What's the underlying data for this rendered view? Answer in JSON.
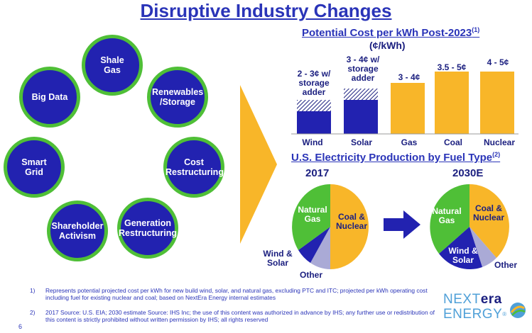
{
  "page": {
    "title": "Disruptive Industry Changes",
    "page_number": "6"
  },
  "circles": [
    {
      "label": "Shale Gas"
    },
    {
      "label": "Renewables /Storage"
    },
    {
      "label": "Cost Restructuring"
    },
    {
      "label": "Generation Restructuring"
    },
    {
      "label": "Shareholder Activism"
    },
    {
      "label": "Smart Grid"
    },
    {
      "label": "Big Data"
    }
  ],
  "cost_chart": {
    "title": "Potential Cost per kWh Post-2023",
    "title_sup": "(1)",
    "unit": "(¢/kWh)",
    "bars": [
      {
        "category": "Wind",
        "label": "2 - 3¢ w/ storage adder",
        "range": "2 - 3¢",
        "color": "#2222b0"
      },
      {
        "category": "Solar",
        "label": "3 - 4¢ w/ storage adder",
        "range": "3 - 4¢",
        "color": "#2222b0"
      },
      {
        "category": "Gas",
        "label": "3 - 4¢",
        "range": "3 - 4¢",
        "color": "#f8b629"
      },
      {
        "category": "Coal",
        "label": "3.5 - 5¢",
        "range": "3.5 - 5¢",
        "color": "#f8b629"
      },
      {
        "category": "Nuclear",
        "label": "4 - 5¢",
        "range": "4 - 5¢",
        "color": "#f8b629"
      }
    ]
  },
  "production": {
    "title": "U.S. Electricity Production by Fuel Type",
    "title_sup": "(2)",
    "pies": [
      {
        "year": "2017",
        "slices": [
          {
            "name": "Coal & Nuclear",
            "color": "#f8b629"
          },
          {
            "name": "Other",
            "color": "#aaaad6"
          },
          {
            "name": "Wind & Solar",
            "color": "#2222b0"
          },
          {
            "name": "Natural Gas",
            "color": "#4fbf37"
          }
        ]
      },
      {
        "year": "2030E",
        "slices": [
          {
            "name": "Coal & Nuclear",
            "color": "#f8b629"
          },
          {
            "name": "Other",
            "color": "#aaaad6"
          },
          {
            "name": "Wind & Solar",
            "color": "#2222b0"
          },
          {
            "name": "Natural Gas",
            "color": "#4fbf37"
          }
        ]
      }
    ]
  },
  "footnotes": [
    {
      "num": "1)",
      "text": "Represents potential projected cost per kWh for new build wind, solar, and natural gas, excluding PTC and ITC; projected per kWh operating cost including fuel for existing nuclear and coal; based on NextEra Energy internal estimates"
    },
    {
      "num": "2)",
      "text": "2017 Source: U.S. EIA; 2030 estimate Source: IHS Inc; the use of this content was authorized in advance by IHS; any further use or redistribution of this content is strictly prohibited without written permission by IHS; all rights reserved"
    }
  ],
  "logo": {
    "line1_a": "NEXT",
    "line1_b": "era",
    "line2": "ENERGY",
    "mark": "®"
  },
  "colors": {
    "blue": "#2222b0",
    "green": "#4fbf37",
    "orange": "#f8b629",
    "title": "#2a34b8"
  }
}
